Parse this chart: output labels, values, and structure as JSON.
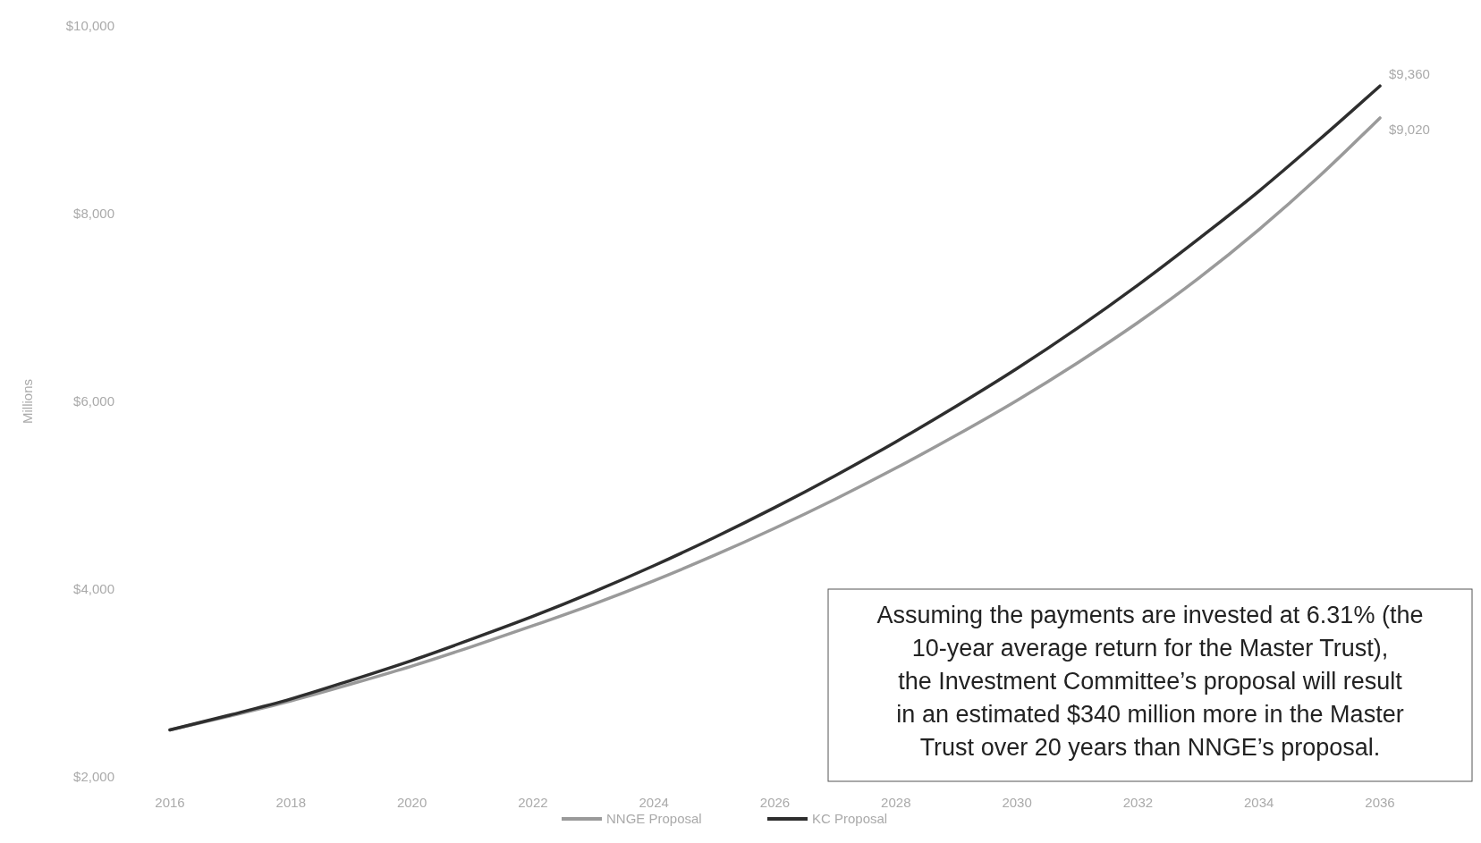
{
  "chart_data": {
    "type": "line",
    "ylabel": "Millions",
    "x": [
      2016,
      2017,
      2018,
      2019,
      2020,
      2021,
      2022,
      2023,
      2024,
      2025,
      2026,
      2027,
      2028,
      2029,
      2030,
      2031,
      2032,
      2033,
      2034,
      2035,
      2036
    ],
    "series": [
      {
        "name": "NNGE Proposal",
        "color": "#9a9a9a",
        "values": [
          2500,
          2650,
          2810,
          2990,
          3180,
          3390,
          3610,
          3840,
          4090,
          4360,
          4650,
          4960,
          5290,
          5640,
          6010,
          6410,
          6840,
          7310,
          7830,
          8400,
          9020
        ]
      },
      {
        "name": "KC Proposal",
        "color": "#2e2e2e",
        "values": [
          2500,
          2660,
          2830,
          3030,
          3240,
          3470,
          3710,
          3970,
          4250,
          4550,
          4870,
          5210,
          5570,
          5950,
          6350,
          6780,
          7240,
          7730,
          8240,
          8790,
          9360
        ]
      }
    ],
    "xlim": [
      2016,
      2036
    ],
    "xticks": [
      2016,
      2018,
      2020,
      2022,
      2024,
      2026,
      2028,
      2030,
      2032,
      2034,
      2036
    ],
    "ylim": [
      2000,
      10000
    ],
    "yticks": [
      {
        "value": 2000,
        "label": "$2,000"
      },
      {
        "value": 4000,
        "label": "$4,000"
      },
      {
        "value": 6000,
        "label": "$6,000"
      },
      {
        "value": 8000,
        "label": "$8,000"
      },
      {
        "value": 10000,
        "label": "$10,000"
      }
    ],
    "legend": "bottom",
    "grid": false,
    "marker": "none",
    "line_style": "solid",
    "annotations": [
      {
        "text": "$9,360",
        "x": 2036,
        "y": 9360
      },
      {
        "text": "$9,020",
        "x": 2036,
        "y": 9020
      },
      "Assuming the payments are invested at 6.31% (the 10-year average return for the Master Trust), the Investment Committee’s proposal will result in an estimated $340 million more in the Master Trust  over 20 years than NNGE’s proposal."
    ]
  }
}
